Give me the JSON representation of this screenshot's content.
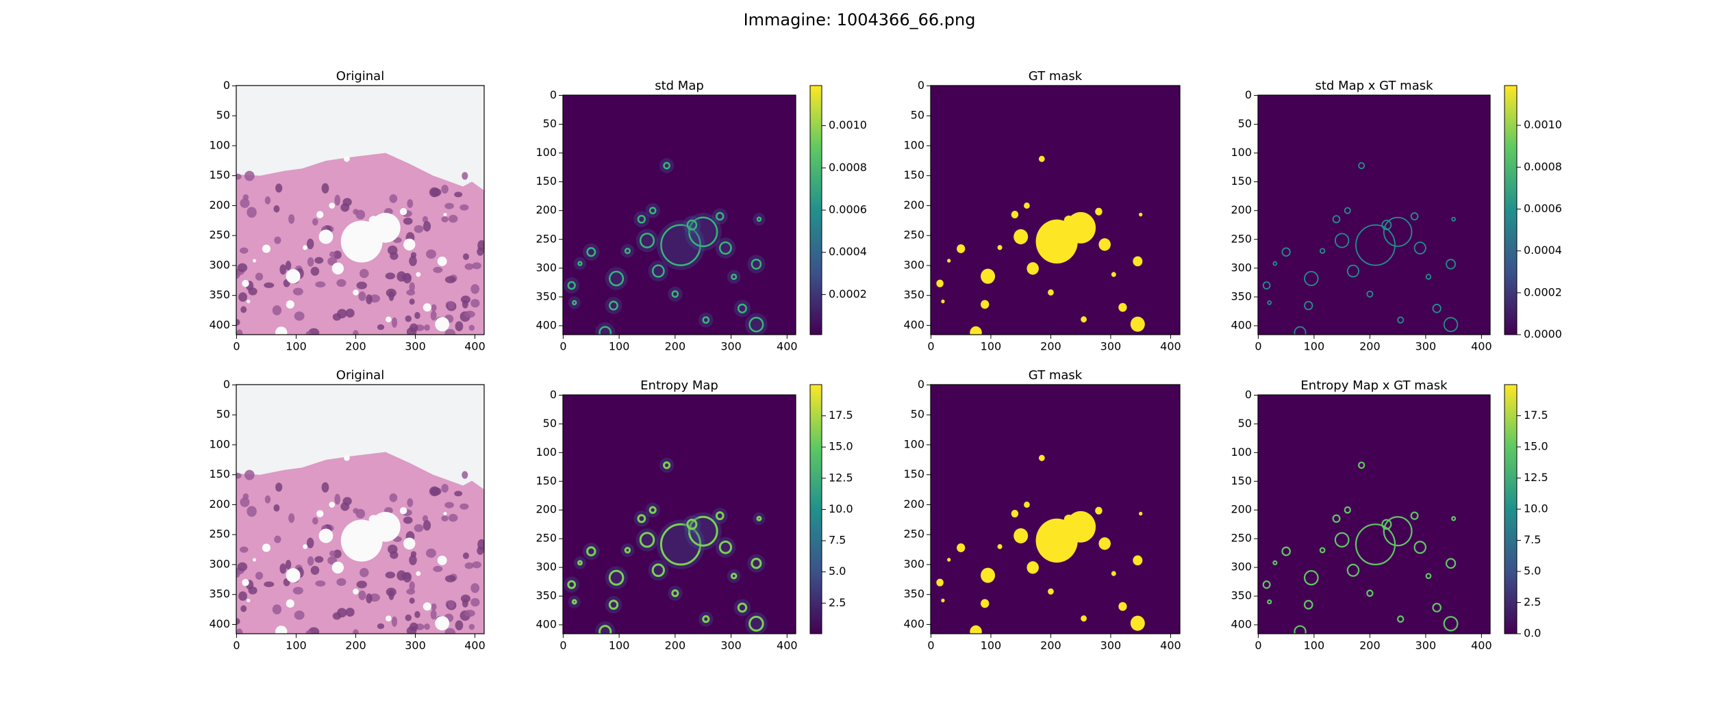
{
  "title": "Immagine: 1004366_66.png",
  "chart_data": [
    {
      "type": "image",
      "title": "Original",
      "xlim": [
        -0.5,
        415.5
      ],
      "ylim": [
        415.5,
        -0.5
      ],
      "xticks": [
        0,
        100,
        200,
        300,
        400
      ],
      "yticks": [
        0,
        50,
        100,
        150,
        200,
        250,
        300,
        350,
        400
      ]
    },
    {
      "type": "image",
      "title": "std Map",
      "cmap": "viridis",
      "xlim": [
        -0.5,
        415.5
      ],
      "ylim": [
        415.5,
        -0.5
      ],
      "xticks": [
        0,
        100,
        200,
        300,
        400
      ],
      "yticks": [
        0,
        50,
        100,
        150,
        200,
        250,
        300,
        350,
        400
      ],
      "colorbar": {
        "clim": [
          1e-05,
          0.00119
        ],
        "ticks": [
          {
            "value": 0.0002,
            "label": "0.0002"
          },
          {
            "value": 0.0004,
            "label": "0.0004"
          },
          {
            "value": 0.0006,
            "label": "0.0006"
          },
          {
            "value": 0.0008,
            "label": "0.0008"
          },
          {
            "value": 0.001,
            "label": "0.0010"
          }
        ]
      }
    },
    {
      "type": "image",
      "title": "GT mask",
      "xlim": [
        -0.5,
        415.5
      ],
      "ylim": [
        415.5,
        -0.5
      ],
      "xticks": [
        0,
        100,
        200,
        300,
        400
      ],
      "yticks": [
        0,
        50,
        100,
        150,
        200,
        250,
        300,
        350,
        400
      ]
    },
    {
      "type": "image",
      "title": "std Map x GT mask",
      "cmap": "viridis",
      "xlim": [
        -0.5,
        415.5
      ],
      "ylim": [
        415.5,
        -0.5
      ],
      "xticks": [
        0,
        100,
        200,
        300,
        400
      ],
      "yticks": [
        0,
        50,
        100,
        150,
        200,
        250,
        300,
        350,
        400
      ],
      "colorbar": {
        "clim": [
          0,
          0.00119
        ],
        "ticks": [
          {
            "value": 0,
            "label": "0.0000"
          },
          {
            "value": 0.0002,
            "label": "0.0002"
          },
          {
            "value": 0.0004,
            "label": "0.0004"
          },
          {
            "value": 0.0006,
            "label": "0.0006"
          },
          {
            "value": 0.0008,
            "label": "0.0008"
          },
          {
            "value": 0.001,
            "label": "0.0010"
          }
        ]
      }
    },
    {
      "type": "image",
      "title": "Original",
      "xlim": [
        -0.5,
        415.5
      ],
      "ylim": [
        415.5,
        -0.5
      ],
      "xticks": [
        0,
        100,
        200,
        300,
        400
      ],
      "yticks": [
        0,
        50,
        100,
        150,
        200,
        250,
        300,
        350,
        400
      ]
    },
    {
      "type": "image",
      "title": "Entropy Map",
      "cmap": "viridis",
      "xlim": [
        -0.5,
        415.5
      ],
      "ylim": [
        415.5,
        -0.5
      ],
      "xticks": [
        0,
        100,
        200,
        300,
        400
      ],
      "yticks": [
        0,
        50,
        100,
        150,
        200,
        250,
        300,
        350,
        400
      ],
      "colorbar": {
        "clim": [
          0.05,
          20
        ],
        "ticks": [
          2.5,
          {
            "value": 5,
            "label": "5.0"
          },
          7.5,
          {
            "value": 10,
            "label": "10.0"
          },
          12.5,
          {
            "value": 15,
            "label": "15.0"
          },
          17.5
        ]
      }
    },
    {
      "type": "image",
      "title": "GT mask",
      "xlim": [
        -0.5,
        415.5
      ],
      "ylim": [
        415.5,
        -0.5
      ],
      "xticks": [
        0,
        100,
        200,
        300,
        400
      ],
      "yticks": [
        0,
        50,
        100,
        150,
        200,
        250,
        300,
        350,
        400
      ]
    },
    {
      "type": "image",
      "title": "Entropy Map x GT mask",
      "cmap": "viridis",
      "xlim": [
        -0.5,
        415.5
      ],
      "ylim": [
        415.5,
        -0.5
      ],
      "xticks": [
        0,
        100,
        200,
        300,
        400
      ],
      "yticks": [
        0,
        50,
        100,
        150,
        200,
        250,
        300,
        350,
        400
      ],
      "colorbar": {
        "clim": [
          0,
          20
        ],
        "ticks": [
          {
            "value": 0,
            "label": "0.0"
          },
          2.5,
          {
            "value": 5,
            "label": "5.0"
          },
          7.5,
          {
            "value": 10,
            "label": "10.0"
          },
          12.5,
          {
            "value": 15,
            "label": "15.0"
          },
          17.5
        ]
      }
    }
  ]
}
